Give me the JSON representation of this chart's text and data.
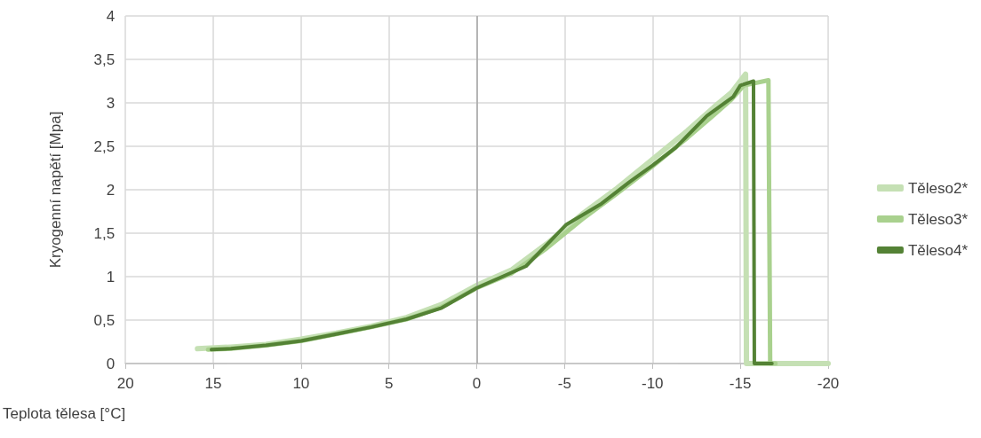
{
  "chart_data": {
    "type": "line",
    "xlabel": "Teplota tělesa [°C]",
    "ylabel": "Kryogenní napětí [Mpa]",
    "xlim": [
      20,
      -20
    ],
    "xticks": [
      20,
      15,
      10,
      5,
      0,
      -5,
      -10,
      -15,
      -20
    ],
    "ylim": [
      0,
      4
    ],
    "yticks": [
      0,
      {
        "value": 0.5,
        "label": "0,5"
      },
      1,
      {
        "value": 1.5,
        "label": "1,5"
      },
      2,
      {
        "value": 2.5,
        "label": "2,5"
      },
      3,
      {
        "value": 3.5,
        "label": "3,5"
      },
      4
    ],
    "grid": true,
    "legend": "right",
    "marker": "none",
    "line_style": "solid",
    "ref_lines": [
      {
        "axis": "x",
        "value": 0,
        "color": "#a6a6a6"
      }
    ],
    "series": [
      {
        "name": "Těleso2*",
        "color": "#c5e0b4",
        "x": [
          15.9,
          14,
          12,
          10,
          8,
          6,
          4,
          2,
          0,
          -2,
          -4,
          -6,
          -8,
          -10,
          -12,
          -13.5,
          -14.5,
          -15.3,
          -15.35,
          -17,
          -20
        ],
        "values": [
          0.17,
          0.19,
          0.22,
          0.28,
          0.35,
          0.43,
          0.53,
          0.68,
          0.9,
          1.08,
          1.38,
          1.72,
          2.02,
          2.35,
          2.68,
          2.95,
          3.12,
          3.33,
          0,
          0,
          0
        ]
      },
      {
        "name": "Těleso3*",
        "color": "#a9d18e",
        "x": [
          15.3,
          14,
          12,
          10,
          8,
          6,
          4,
          2,
          0,
          -2,
          -4,
          -6,
          -8,
          -10,
          -12,
          -13.5,
          -14.5,
          -15.2,
          -16.6,
          -16.7,
          -17
        ],
        "values": [
          0.16,
          0.17,
          0.21,
          0.26,
          0.34,
          0.42,
          0.51,
          0.65,
          0.87,
          1.04,
          1.33,
          1.66,
          1.96,
          2.27,
          2.6,
          2.86,
          3.04,
          3.2,
          3.26,
          0,
          0
        ]
      },
      {
        "name": "Těleso4*",
        "color": "#548235",
        "x": [
          15.1,
          14,
          12,
          10,
          8,
          6,
          4,
          2,
          0,
          -2.8,
          -5.1,
          -7.1,
          -8.7,
          -10,
          -11.3,
          -13.1,
          -14.6,
          -15,
          -15.75,
          -15.8,
          -16.8
        ],
        "values": [
          0.16,
          0.17,
          0.21,
          0.26,
          0.34,
          0.42,
          0.51,
          0.64,
          0.87,
          1.12,
          1.6,
          1.84,
          2.09,
          2.28,
          2.48,
          2.85,
          3.07,
          3.2,
          3.25,
          0,
          0
        ]
      }
    ]
  }
}
